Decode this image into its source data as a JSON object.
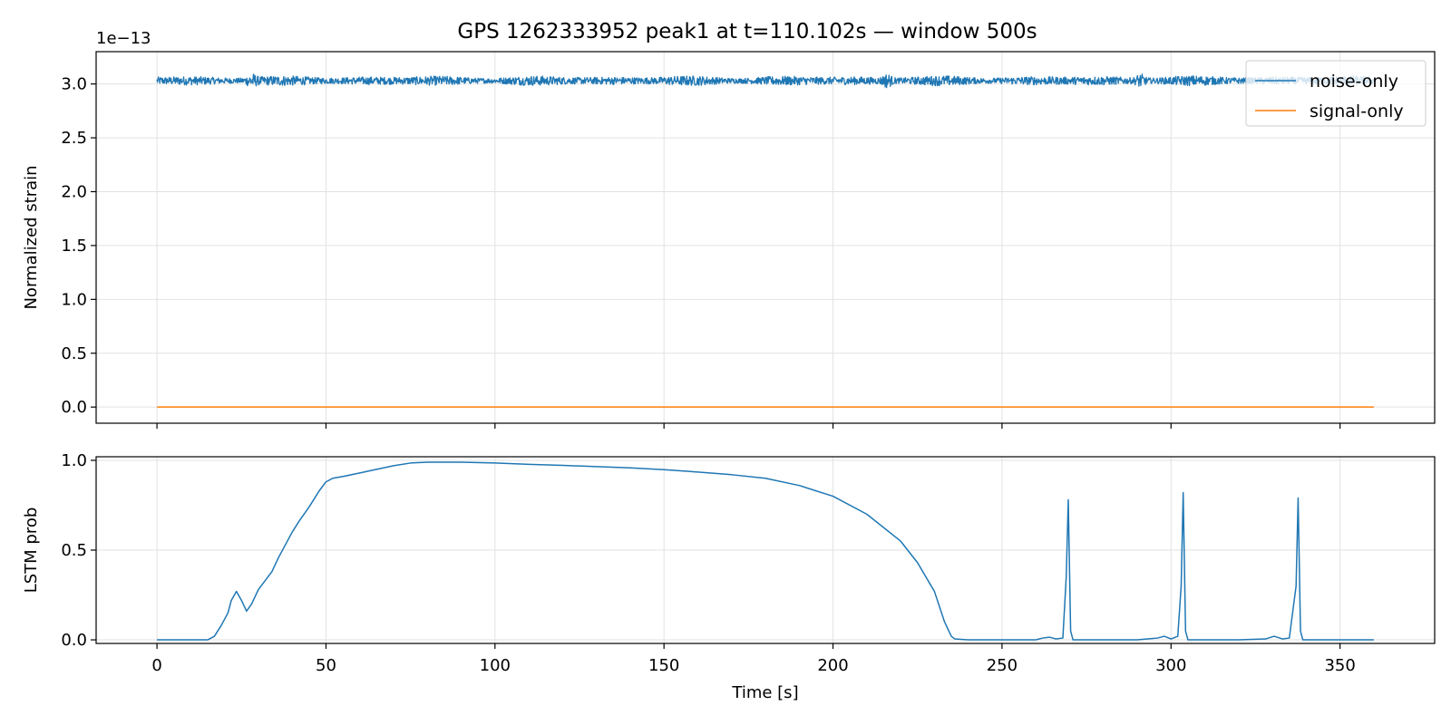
{
  "figure": {
    "title": "GPS 1262333952 peak1 at t=110.102s — window 500s"
  },
  "chart_data": [
    {
      "type": "line",
      "ylabel": "Normalized strain",
      "xlabel": "",
      "offset_text": "1e−13",
      "ylim": [
        -0.15,
        3.3
      ],
      "xlim": [
        -18,
        378
      ],
      "y_ticks": [
        "0.0",
        "0.5",
        "1.0",
        "1.5",
        "2.0",
        "2.5",
        "3.0"
      ],
      "grid": true,
      "legend_position": "top-right",
      "series": [
        {
          "name": "noise-only",
          "color": "#1f77b4",
          "kind": "noise",
          "x": [
            0,
            360
          ],
          "center": 3.03,
          "amplitude": 0.035,
          "bursts": [
            28,
            216,
            291
          ]
        },
        {
          "name": "signal-only",
          "color": "#ff7f0e",
          "kind": "line",
          "x": [
            0,
            360
          ],
          "values": [
            0.0,
            0.0
          ]
        }
      ]
    },
    {
      "type": "line",
      "ylabel": "LSTM prob",
      "xlabel": "Time [s]",
      "ylim": [
        -0.02,
        1.02
      ],
      "xlim": [
        -18,
        378
      ],
      "y_ticks": [
        "0.0",
        "0.5",
        "1.0"
      ],
      "x_ticks": [
        "0",
        "50",
        "100",
        "150",
        "200",
        "250",
        "300",
        "350"
      ],
      "grid": true,
      "series": [
        {
          "name": "",
          "color": "#1f77b4",
          "x": [
            0,
            15,
            17,
            19,
            21,
            22,
            23.5,
            25,
            26.5,
            28,
            30,
            32,
            34,
            36,
            38,
            40,
            42,
            45,
            48,
            50,
            52,
            55,
            60,
            65,
            70,
            75,
            80,
            90,
            100,
            110,
            120,
            130,
            140,
            150,
            160,
            170,
            180,
            190,
            200,
            210,
            220,
            225,
            230,
            233,
            235,
            236,
            240,
            250,
            260,
            262,
            264,
            266,
            268,
            269,
            269.6,
            270.3,
            271,
            280,
            290,
            296,
            298,
            300,
            302,
            303,
            303.6,
            304.3,
            305,
            320,
            328,
            330.5,
            333,
            335,
            337,
            337.6,
            338.3,
            339,
            350,
            360
          ],
          "values": [
            0,
            0,
            0.02,
            0.08,
            0.15,
            0.22,
            0.27,
            0.22,
            0.16,
            0.2,
            0.28,
            0.33,
            0.38,
            0.46,
            0.53,
            0.6,
            0.66,
            0.74,
            0.83,
            0.88,
            0.9,
            0.91,
            0.93,
            0.95,
            0.97,
            0.985,
            0.99,
            0.99,
            0.985,
            0.978,
            0.972,
            0.965,
            0.958,
            0.948,
            0.935,
            0.92,
            0.9,
            0.86,
            0.8,
            0.7,
            0.55,
            0.43,
            0.27,
            0.1,
            0.02,
            0.005,
            0,
            0,
            0,
            0.01,
            0.015,
            0.005,
            0.01,
            0.35,
            0.78,
            0.05,
            0,
            0,
            0,
            0.01,
            0.02,
            0.005,
            0.02,
            0.3,
            0.82,
            0.05,
            0,
            0,
            0.005,
            0.02,
            0.005,
            0.01,
            0.3,
            0.79,
            0.05,
            0,
            0,
            0
          ]
        }
      ]
    }
  ]
}
